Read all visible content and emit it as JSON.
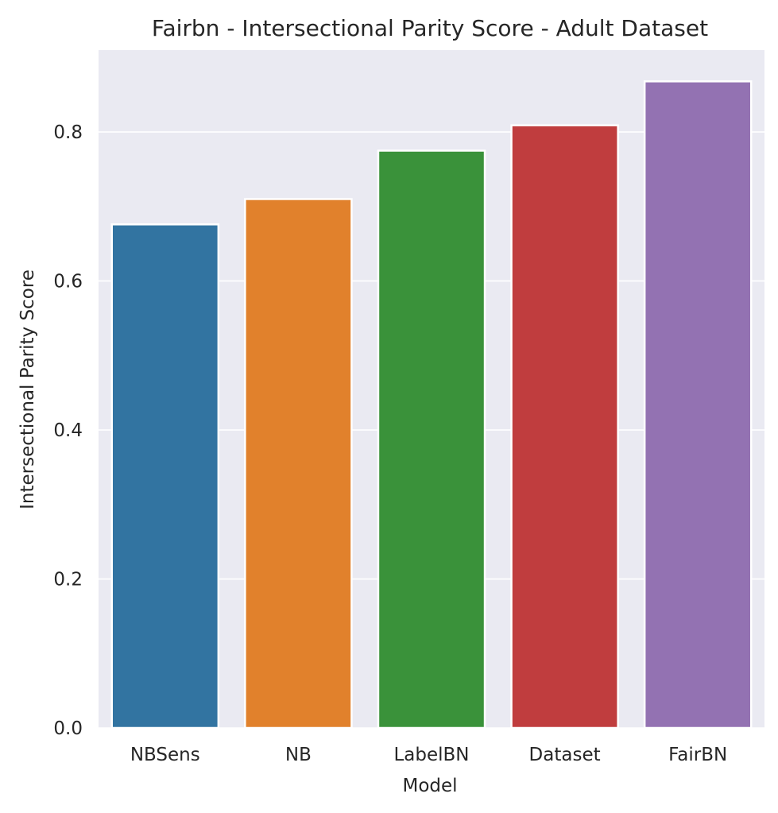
{
  "chart_data": {
    "type": "bar",
    "title": "Fairbn - Intersectional Parity Score - Adult Dataset",
    "xlabel": "Model",
    "ylabel": "Intersectional Parity Score",
    "categories": [
      "NBSens",
      "NB",
      "LabelBN",
      "Dataset",
      "FairBN"
    ],
    "values": [
      0.676,
      0.71,
      0.775,
      0.809,
      0.868
    ],
    "colors": [
      "#3274a1",
      "#e1812c",
      "#3a923a",
      "#c03d3e",
      "#9372b2"
    ],
    "ylim": [
      0,
      0.91
    ],
    "yticks": [
      0.0,
      0.2,
      0.4,
      0.6,
      0.8
    ],
    "ytick_labels": [
      "0.0",
      "0.2",
      "0.4",
      "0.6",
      "0.8"
    ],
    "grid": true,
    "background": "#eaeaf2"
  }
}
